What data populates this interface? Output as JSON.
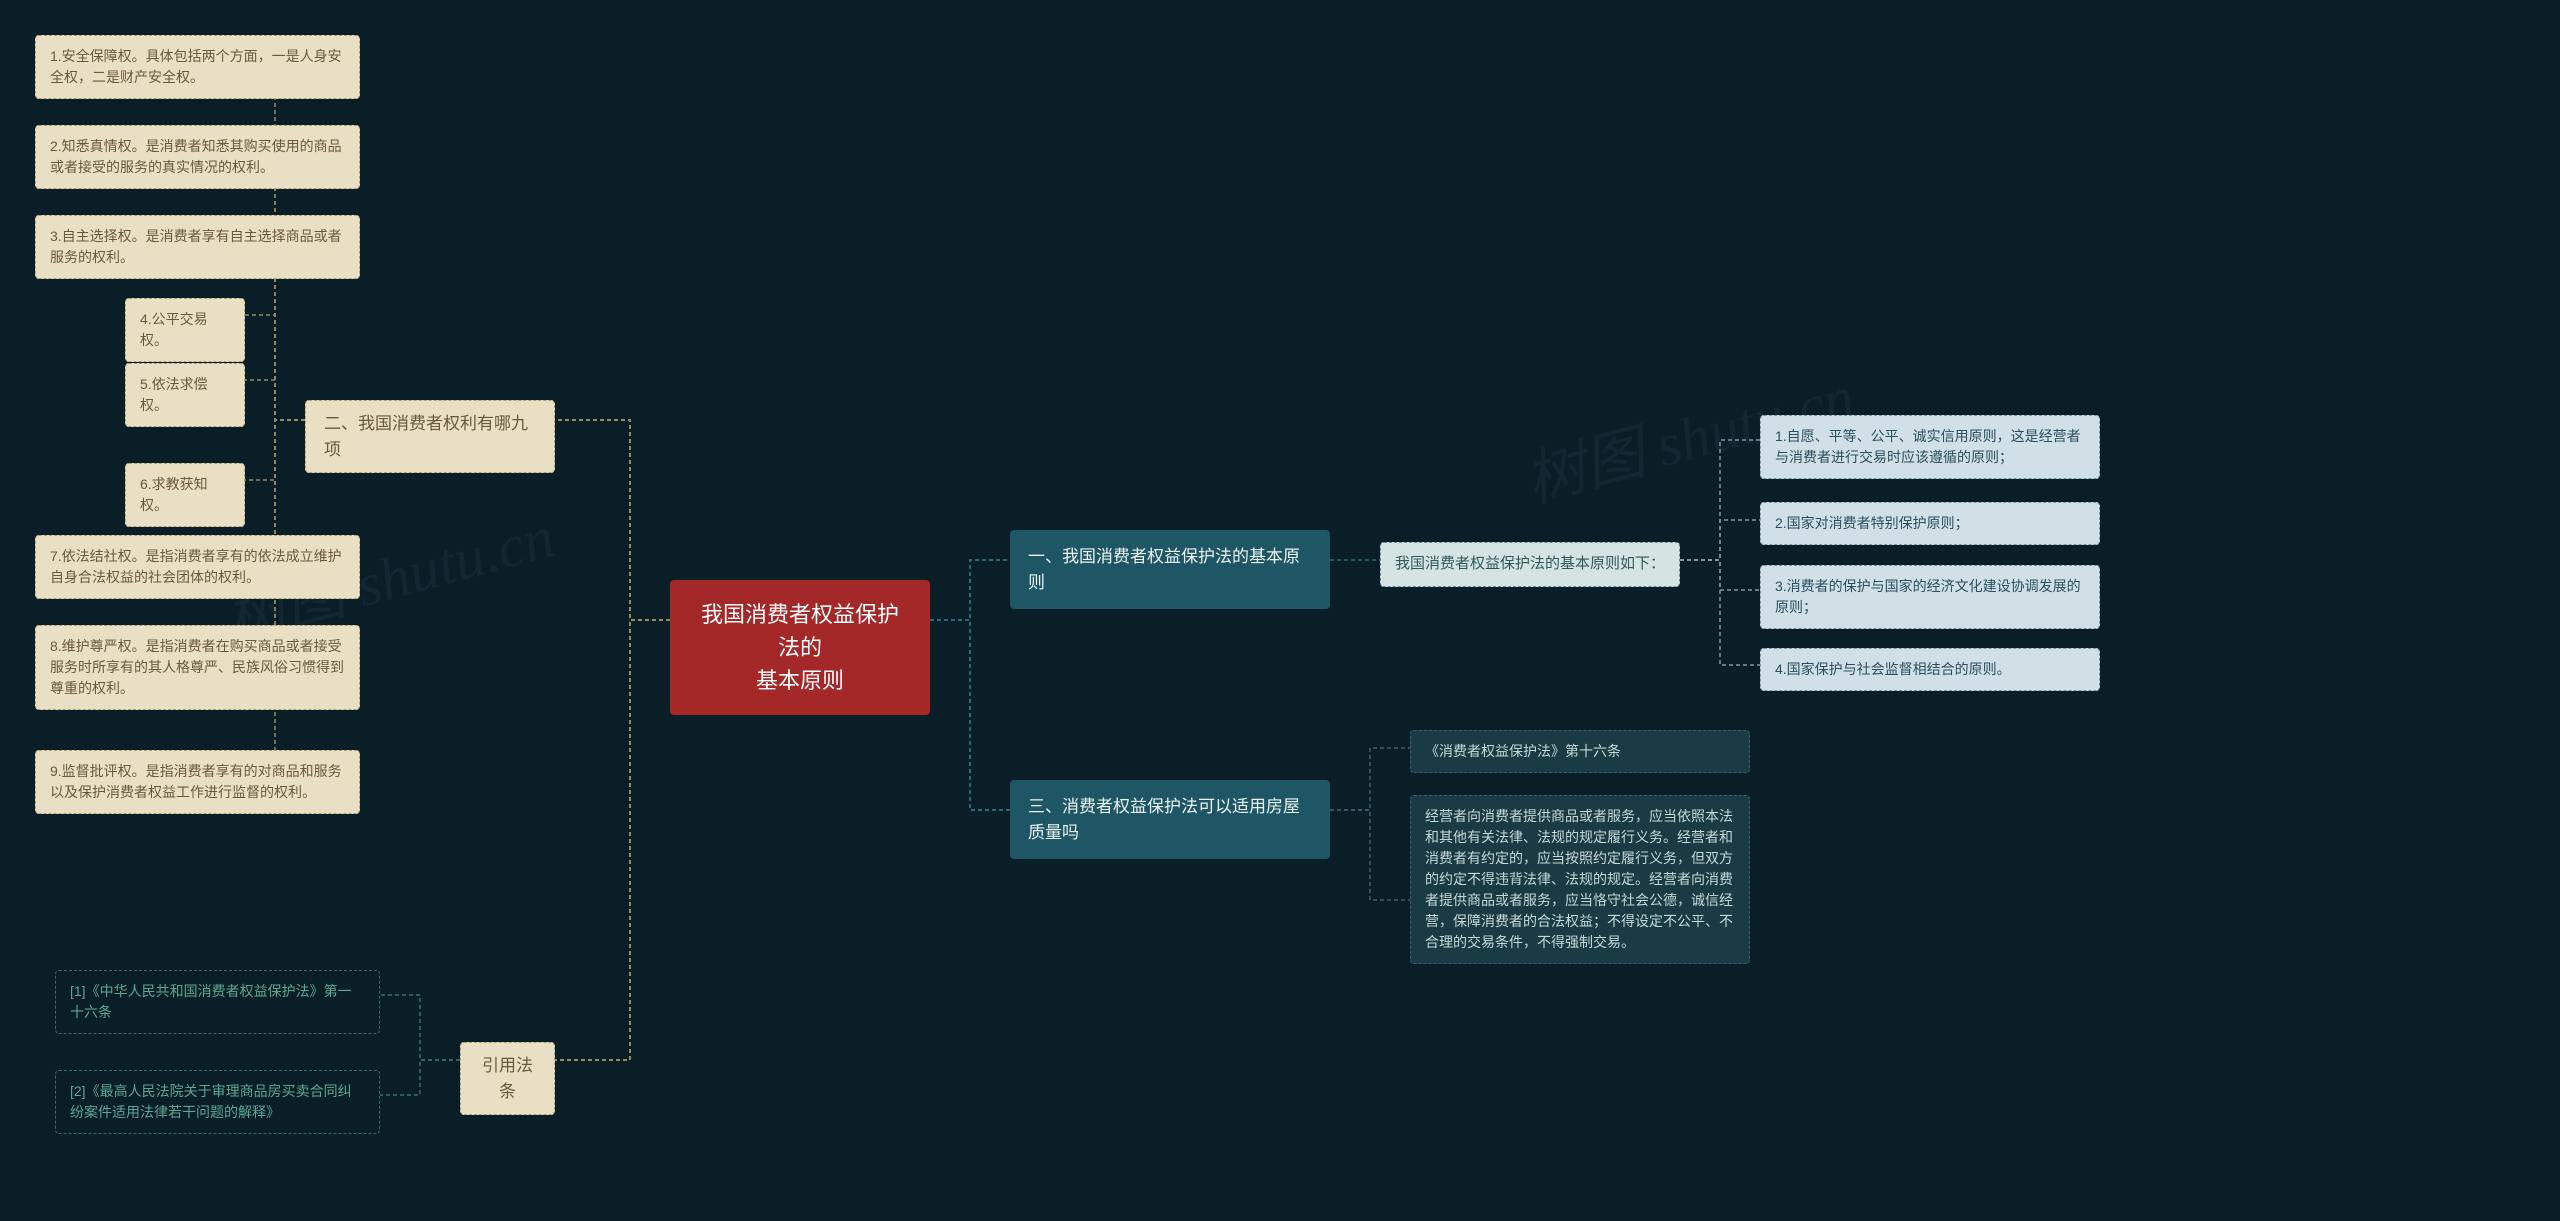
{
  "colors": {
    "background": "#0a1e28",
    "root_bg": "#a42828",
    "root_text": "#ffffff",
    "teal_bg": "#1e5666",
    "teal_text": "#eaf2f0",
    "light_bg": "#d6e3e3",
    "light_text": "#305a5a",
    "cream_bg": "#e8dfc4",
    "cream_text": "#6b5a3a",
    "leaf_lb_bg": "#d0e0e6",
    "leaf_lb_text": "#2a4f5f",
    "leaf_dark_bg": "#1a3a44",
    "leaf_dark_text": "#c5d8d8",
    "link_teal": "#2a6a7a",
    "link_cream": "#9a8a5a",
    "link_green": "#3a7060",
    "greentext": "#5aa890"
  },
  "root": {
    "label": "我国消费者权益保护法的\n基本原则"
  },
  "b1": {
    "label": "一、我国消费者权益保护法的基本原则",
    "sub": {
      "label": "我国消费者权益保护法的基本原则如下："
    },
    "leaves": [
      "1.自愿、平等、公平、诚实信用原则，这是经营者与消费者进行交易时应该遵循的原则；",
      "2.国家对消费者特别保护原则；",
      "3.消费者的保护与国家的经济文化建设协调发展的原则；",
      "4.国家保护与社会监督相结合的原则。"
    ]
  },
  "b3": {
    "label": "三、消费者权益保护法可以适用房屋质量吗",
    "leaves": [
      "《消费者权益保护法》第十六条",
      "经营者向消费者提供商品或者服务，应当依照本法和其他有关法律、法规的规定履行义务。经营者和消费者有约定的，应当按照约定履行义务，但双方的约定不得违背法律、法规的规定。经营者向消费者提供商品或者服务，应当恪守社会公德，诚信经营，保障消费者的合法权益；不得设定不公平、不合理的交易条件，不得强制交易。"
    ]
  },
  "b2": {
    "label": "二、我国消费者权利有哪九项",
    "leaves": [
      "1.安全保障权。具体包括两个方面，一是人身安全权，二是财产安全权。",
      "2.知悉真情权。是消费者知悉其购买使用的商品或者接受的服务的真实情况的权利。",
      "3.自主选择权。是消费者享有自主选择商品或者服务的权利。",
      "4.公平交易权。",
      "5.依法求偿权。",
      "6.求教获知权。",
      "7.依法结社权。是指消费者享有的依法成立维护自身合法权益的社会团体的权利。",
      "8.维护尊严权。是指消费者在购买商品或者接受服务时所享有的其人格尊严、民族风俗习惯得到尊重的权利。",
      "9.监督批评权。是指消费者享有的对商品和服务以及保护消费者权益工作进行监督的权利。"
    ]
  },
  "b4": {
    "label": "引用法条",
    "leaves": [
      "[1]《中华人民共和国消费者权益保护法》第一十六条",
      "[2]《最高人民法院关于审理商品房买卖合同纠纷案件适用法律若干问题的解释》"
    ]
  },
  "watermark": "树图 shutu.cn"
}
